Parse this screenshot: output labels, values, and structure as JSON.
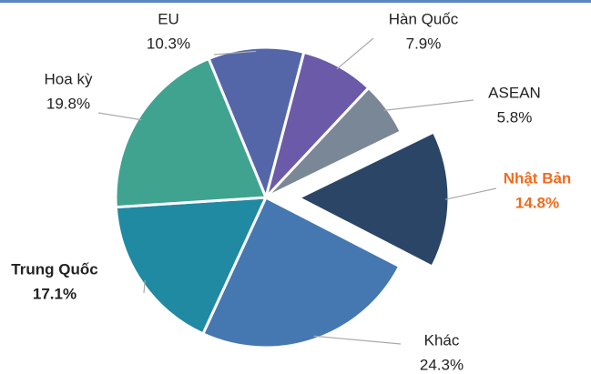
{
  "chart_data": {
    "type": "pie",
    "categories": [
      "EU",
      "Hàn Quốc",
      "ASEAN",
      "Nhật Bản",
      "Khác",
      "Trung Quốc",
      "Hoa kỳ"
    ],
    "values": [
      10.3,
      7.9,
      5.8,
      14.8,
      24.3,
      17.1,
      19.8
    ],
    "value_labels": [
      "10.3%",
      "7.9%",
      "5.8%",
      "14.8%",
      "24.3%",
      "17.1%",
      "19.8%"
    ],
    "colors": [
      "#5566a8",
      "#6a5aa8",
      "#7a8797",
      "#2b4566",
      "#4577b0",
      "#1f8aa1",
      "#3fa38f"
    ],
    "label_colors": [
      "#222222",
      "#222222",
      "#222222",
      "#f26b1d",
      "#222222",
      "#222222",
      "#222222"
    ],
    "bold_labels": [
      3,
      5
    ],
    "exploded": [
      3
    ]
  }
}
